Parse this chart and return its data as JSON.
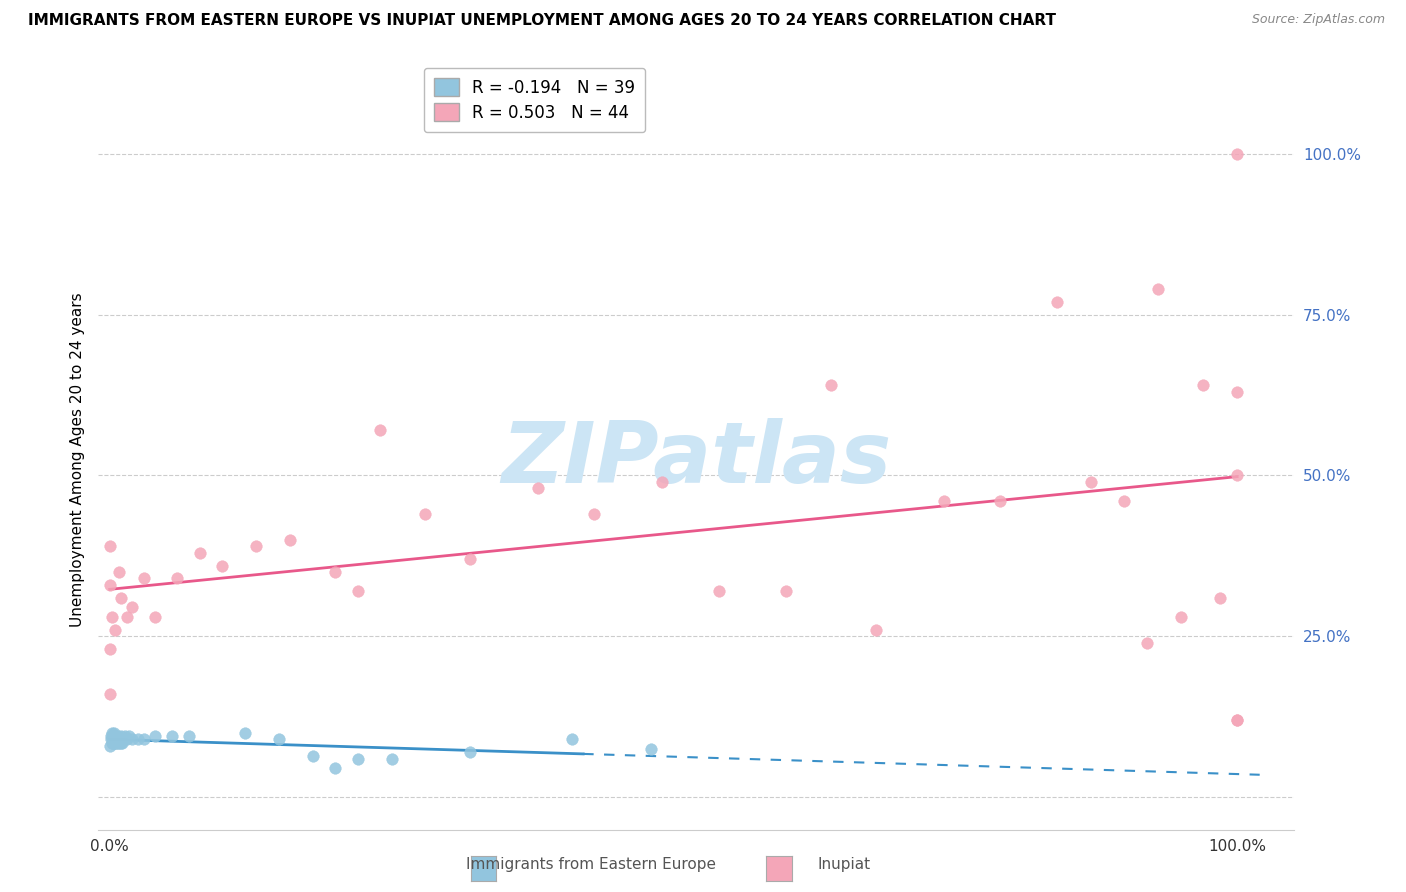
{
  "title": "IMMIGRANTS FROM EASTERN EUROPE VS INUPIAT UNEMPLOYMENT AMONG AGES 20 TO 24 YEARS CORRELATION CHART",
  "source": "Source: ZipAtlas.com",
  "ylabel": "Unemployment Among Ages 20 to 24 years",
  "ytick_values": [
    0.0,
    0.25,
    0.5,
    0.75,
    1.0
  ],
  "ytick_labels": [
    "",
    "25.0%",
    "50.0%",
    "75.0%",
    "100.0%"
  ],
  "xtick_values": [
    0.0,
    1.0
  ],
  "xtick_labels": [
    "0.0%",
    "100.0%"
  ],
  "xlim": [
    -0.01,
    1.05
  ],
  "ylim": [
    -0.05,
    1.1
  ],
  "legend_r1": "R = -0.194",
  "legend_n1": "N = 39",
  "legend_r2": "R = 0.503",
  "legend_n2": "N = 44",
  "color_blue": "#92c5de",
  "color_pink": "#f4a6b8",
  "color_blue_line": "#3a90c8",
  "color_pink_line": "#e8588a",
  "watermark_text": "ZIPatlas",
  "watermark_color": "#cce5f5",
  "legend_label_blue": "Immigrants from Eastern Europe",
  "legend_label_pink": "Inupiat",
  "blue_x": [
    0.0,
    0.001,
    0.001,
    0.002,
    0.002,
    0.003,
    0.003,
    0.004,
    0.004,
    0.005,
    0.005,
    0.006,
    0.006,
    0.007,
    0.007,
    0.008,
    0.009,
    0.01,
    0.01,
    0.011,
    0.012,
    0.014,
    0.015,
    0.017,
    0.02,
    0.025,
    0.03,
    0.04,
    0.055,
    0.07,
    0.12,
    0.15,
    0.18,
    0.2,
    0.22,
    0.25,
    0.32,
    0.41,
    0.48
  ],
  "blue_y": [
    0.08,
    0.09,
    0.095,
    0.085,
    0.1,
    0.085,
    0.095,
    0.085,
    0.1,
    0.085,
    0.095,
    0.085,
    0.09,
    0.085,
    0.095,
    0.085,
    0.09,
    0.085,
    0.095,
    0.085,
    0.09,
    0.095,
    0.09,
    0.095,
    0.09,
    0.09,
    0.09,
    0.095,
    0.095,
    0.095,
    0.1,
    0.09,
    0.065,
    0.045,
    0.06,
    0.06,
    0.07,
    0.09,
    0.075
  ],
  "pink_x": [
    0.0,
    0.0,
    0.0,
    0.0,
    0.002,
    0.005,
    0.008,
    0.01,
    0.015,
    0.02,
    0.03,
    0.04,
    0.06,
    0.08,
    0.1,
    0.13,
    0.16,
    0.2,
    0.22,
    0.24,
    0.28,
    0.32,
    0.38,
    0.43,
    0.49,
    0.54,
    0.6,
    0.64,
    0.68,
    0.74,
    0.79,
    0.84,
    0.87,
    0.9,
    0.92,
    0.93,
    0.95,
    0.97,
    0.985,
    1.0,
    1.0,
    1.0,
    1.0,
    1.0
  ],
  "pink_y": [
    0.39,
    0.33,
    0.23,
    0.16,
    0.28,
    0.26,
    0.35,
    0.31,
    0.28,
    0.295,
    0.34,
    0.28,
    0.34,
    0.38,
    0.36,
    0.39,
    0.4,
    0.35,
    0.32,
    0.57,
    0.44,
    0.37,
    0.48,
    0.44,
    0.49,
    0.32,
    0.32,
    0.64,
    0.26,
    0.46,
    0.46,
    0.77,
    0.49,
    0.46,
    0.24,
    0.79,
    0.28,
    0.64,
    0.31,
    0.12,
    1.0,
    0.5,
    0.63,
    0.12
  ]
}
